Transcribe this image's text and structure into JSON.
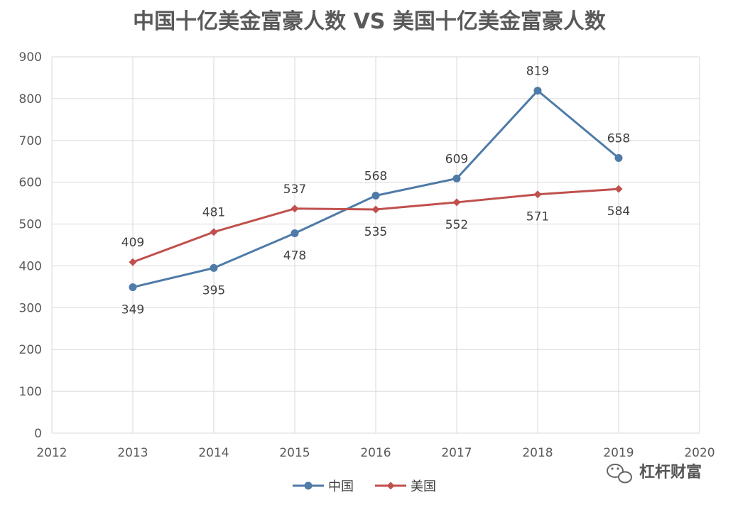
{
  "chart_data": {
    "type": "line",
    "title": "中国十亿美金富豪人数 VS 美国十亿美金富豪人数",
    "xlabel": "",
    "ylabel": "",
    "xlim": [
      2012,
      2020
    ],
    "ylim": [
      0,
      900
    ],
    "xticks": [
      "2012",
      "2013",
      "2014",
      "2015",
      "2016",
      "2017",
      "2018",
      "2019",
      "2020"
    ],
    "yticks": [
      "0",
      "100",
      "200",
      "300",
      "400",
      "500",
      "600",
      "700",
      "800",
      "900"
    ],
    "grid": true,
    "legend_position": "bottom",
    "x": [
      2013,
      2014,
      2015,
      2016,
      2017,
      2018,
      2019
    ],
    "series": [
      {
        "name": "中国",
        "color": "#4f7ba8",
        "marker": "circle",
        "values": [
          349,
          395,
          478,
          568,
          609,
          819,
          658
        ],
        "labels": [
          "349",
          "395",
          "478",
          "568",
          "609",
          "819",
          "658"
        ],
        "label_positions": [
          "below",
          "below",
          "below",
          "above",
          "above",
          "above",
          "above"
        ]
      },
      {
        "name": "美国",
        "color": "#c0504d",
        "marker": "diamond",
        "values": [
          409,
          481,
          537,
          535,
          552,
          571,
          584
        ],
        "labels": [
          "409",
          "481",
          "537",
          "535",
          "552",
          "571",
          "584"
        ],
        "label_positions": [
          "above",
          "above",
          "above",
          "below",
          "below",
          "below",
          "below"
        ]
      }
    ]
  },
  "watermark": {
    "text": "杠杆财富",
    "icon": "wechat-icon"
  }
}
